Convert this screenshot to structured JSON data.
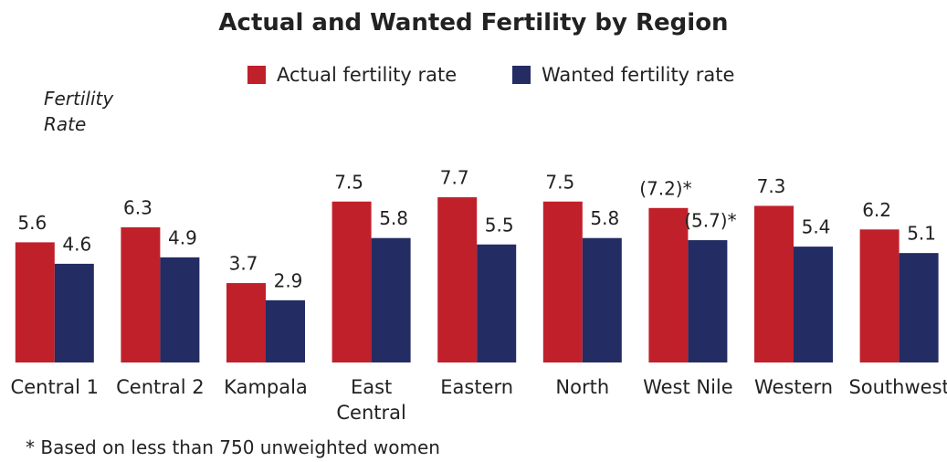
{
  "chart_data": {
    "type": "bar",
    "title": "Actual and Wanted Fertility by Region",
    "y_label": "Fertility\nRate",
    "categories": [
      "Central 1",
      "Central 2",
      "Kampala",
      "East\nCentral",
      "Eastern",
      "North",
      "West Nile",
      "Western",
      "Southwest"
    ],
    "series": [
      {
        "name": "Actual fertility rate",
        "color": "#c0202a",
        "values": [
          5.6,
          6.3,
          3.7,
          7.5,
          7.7,
          7.5,
          7.2,
          7.3,
          6.2
        ],
        "value_labels": [
          "5.6",
          "6.3",
          "3.7",
          "7.5",
          "7.7",
          "7.5",
          "(7.2)*",
          "7.3",
          "6.2"
        ]
      },
      {
        "name": "Wanted fertility rate",
        "color": "#232c63",
        "values": [
          4.6,
          4.9,
          2.9,
          5.8,
          5.5,
          5.8,
          5.7,
          5.4,
          5.1
        ],
        "value_labels": [
          "4.6",
          "4.9",
          "2.9",
          "5.8",
          "5.5",
          "5.8",
          "(5.7)*",
          "5.4",
          "5.1"
        ]
      }
    ],
    "ylim": [
      0,
      8
    ],
    "note": "* Based on less than 750 unweighted women"
  }
}
